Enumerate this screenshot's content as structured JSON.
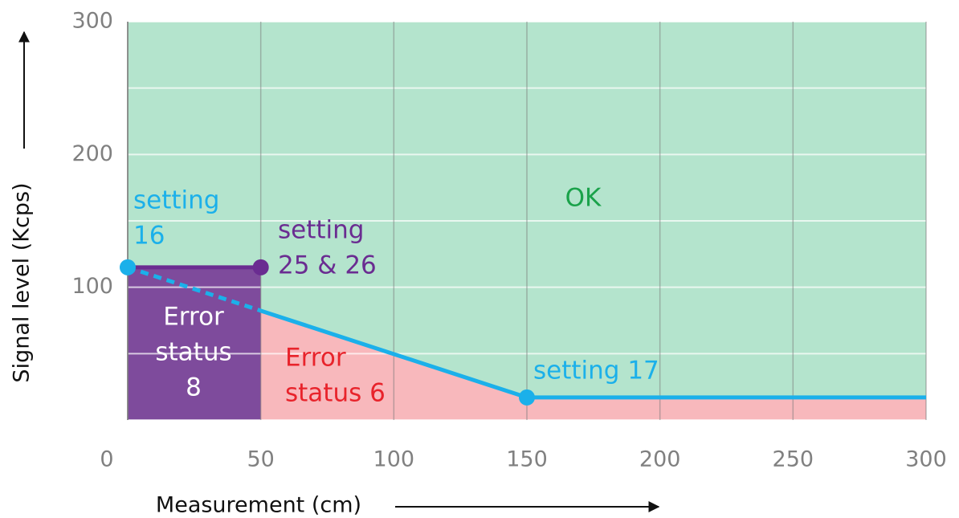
{
  "chart_data": {
    "type": "line",
    "xlabel": "Measurement (cm)",
    "ylabel": "Signal level (Kcps)",
    "xlim": [
      0,
      300
    ],
    "ylim": [
      0,
      300
    ],
    "xticks": [
      0,
      50,
      100,
      150,
      200,
      250,
      300
    ],
    "yticks": [
      0,
      100,
      200,
      300
    ],
    "ygrid": [
      0,
      50,
      100,
      150,
      200,
      250,
      300
    ],
    "background_color": "#b4e4cd",
    "series": [
      {
        "name": "setting 16 / 17",
        "color": "#1bb0ea",
        "x": [
          0,
          150,
          300
        ],
        "values": [
          115,
          17,
          17
        ],
        "fill": "#f8b8bc"
      },
      {
        "name": "setting 25 & 26",
        "color": "#6a2c91",
        "x": [
          0,
          50
        ],
        "values": [
          115,
          115
        ],
        "fill": "#7e4b9c"
      }
    ],
    "annotations": {
      "ok": [
        "OK"
      ],
      "setting16": [
        "setting",
        "16"
      ],
      "setting2526": [
        "setting",
        "25 & 26"
      ],
      "setting17": [
        "setting 17"
      ],
      "error8": [
        "Error",
        "status",
        "8"
      ],
      "error6": [
        "Error",
        "status 6"
      ]
    }
  }
}
